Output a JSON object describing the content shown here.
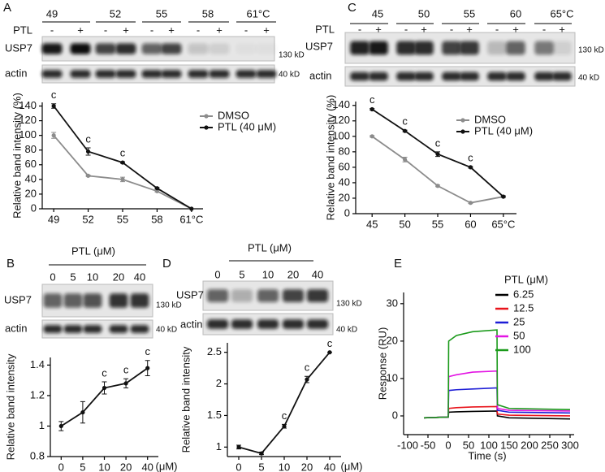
{
  "blots": [
    {
      "letter": "A",
      "header": [
        "49",
        "52",
        "55",
        "58",
        "61°C"
      ],
      "treatment": "PTL",
      "lanes": [
        "-",
        "+",
        "-",
        "+",
        "-",
        "+",
        "-",
        "+",
        "-",
        "+"
      ],
      "rows": [
        {
          "name": "USP7",
          "marker": "130 kD"
        },
        {
          "name": "actin",
          "marker": "40 kD"
        }
      ]
    },
    {
      "letter": "C",
      "header": [
        "45",
        "50",
        "55",
        "60",
        "65°C"
      ],
      "treatment": "PTL",
      "lanes": [
        "-",
        "+",
        "-",
        "+",
        "-",
        "+",
        "-",
        "+",
        "-",
        "+"
      ],
      "rows": [
        {
          "name": "USP7",
          "marker": "130 kD"
        },
        {
          "name": "actin",
          "marker": "40 kD"
        }
      ]
    },
    {
      "letter": "B",
      "header_title": "PTL (μM)",
      "header": [
        "0",
        "5",
        "10",
        "20",
        "40"
      ],
      "rows": [
        {
          "name": "USP7",
          "marker": "130 kD"
        },
        {
          "name": "actin",
          "marker": "40 kD"
        }
      ]
    },
    {
      "letter": "D",
      "header_title": "PTL (μM)",
      "header": [
        "0",
        "5",
        "10",
        "20",
        "40"
      ],
      "rows": [
        {
          "name": "USP7",
          "marker": "130 kD"
        },
        {
          "name": "actin",
          "marker": "40 kD"
        }
      ]
    },
    {
      "letter": "E"
    }
  ],
  "chart_data": [
    {
      "type": "line",
      "ylabel": "Relative band intensity (%)",
      "markers": true,
      "x": [
        49,
        52,
        55,
        58,
        61
      ],
      "xlim": [
        48,
        62
      ],
      "xticks": [
        49,
        52,
        55,
        58,
        {
          "value": 61,
          "label": "61°C"
        }
      ],
      "ylim": [
        0,
        145
      ],
      "yticks": [
        0,
        20,
        40,
        60,
        80,
        100,
        120,
        140
      ],
      "series": [
        {
          "name": "DMSO",
          "color": "#8c8c8c",
          "values": [
            100,
            45,
            40,
            24,
            0
          ],
          "errors": [
            4,
            1,
            3,
            1,
            0
          ]
        },
        {
          "name": "PTL (40 μM)",
          "color": "#111111",
          "values": [
            140,
            78,
            63,
            28,
            0
          ],
          "errors": [
            3,
            5,
            1,
            1,
            0
          ],
          "labels": [
            "c",
            "c",
            "c",
            null,
            null
          ]
        }
      ]
    },
    {
      "type": "line",
      "ylabel": "Relative band intensity (%)",
      "markers": true,
      "x": [
        45,
        50,
        55,
        60,
        65
      ],
      "xlim": [
        42.5,
        67
      ],
      "xticks": [
        45,
        50,
        55,
        60,
        {
          "value": 65,
          "label": "65°C"
        }
      ],
      "ylim": [
        0,
        145
      ],
      "yticks": [
        0,
        20,
        40,
        60,
        80,
        100,
        120,
        140
      ],
      "series": [
        {
          "name": "DMSO",
          "color": "#8c8c8c",
          "values": [
            100,
            70,
            36,
            14,
            22
          ],
          "errors": [
            1,
            3,
            1,
            1,
            1
          ]
        },
        {
          "name": "PTL (40 μM)",
          "color": "#111111",
          "values": [
            135,
            107,
            77,
            60,
            22
          ],
          "errors": [
            1,
            1,
            3,
            1,
            1
          ],
          "labels": [
            "c",
            "c",
            "c",
            "c",
            null
          ]
        }
      ]
    },
    {
      "type": "line",
      "ylabel": "Relative band intensity",
      "xlabel": "(μM)",
      "markers": true,
      "categories": [
        "0",
        "5",
        "10",
        "20",
        "40"
      ],
      "ylim": [
        0.8,
        1.45
      ],
      "yticks": [
        0.8,
        1.0,
        1.2,
        1.4
      ],
      "series": [
        {
          "color": "#111111",
          "values": [
            1.0,
            1.09,
            1.25,
            1.28,
            1.38
          ],
          "errors": [
            0.03,
            0.07,
            0.04,
            0.03,
            0.05
          ],
          "labels": [
            null,
            null,
            "c",
            "c",
            "c"
          ]
        }
      ]
    },
    {
      "type": "line",
      "ylabel": "Relative band intensity",
      "xlabel": "(μM)",
      "markers": true,
      "categories": [
        "0",
        "5",
        "10",
        "20",
        "40"
      ],
      "ylim": [
        0.85,
        2.65
      ],
      "yticks": [
        1.0,
        1.5,
        2.0,
        2.5
      ],
      "series": [
        {
          "color": "#111111",
          "values": [
            1.0,
            0.9,
            1.33,
            2.07,
            2.5
          ],
          "errors": [
            0.03,
            0.02,
            0.03,
            0.05,
            0
          ],
          "labels": [
            null,
            null,
            "c",
            "c",
            "c"
          ]
        }
      ]
    },
    {
      "type": "line",
      "ylabel": "Response (RU)",
      "xlabel": "Time (s)",
      "markers": false,
      "legend_title": "PTL (μM)",
      "x": [
        -60,
        0,
        1,
        20,
        60,
        120,
        121,
        150,
        300
      ],
      "xlim": [
        -110,
        310
      ],
      "xticks": [
        -100,
        -50,
        0,
        50,
        100,
        150,
        200,
        250,
        300
      ],
      "ylim": [
        -5,
        33
      ],
      "yticks": [
        0,
        10,
        20,
        30
      ],
      "series": [
        {
          "name": "6.25",
          "color": "#000000",
          "values": [
            -0.5,
            -0.3,
            1,
            1.1,
            1.2,
            1.3,
            0,
            -0.5,
            -0.8
          ]
        },
        {
          "name": "12.5",
          "color": "#e8141b",
          "values": [
            -0.5,
            -0.3,
            2,
            2.2,
            2.4,
            2.5,
            0.5,
            0.2,
            0
          ]
        },
        {
          "name": "25",
          "color": "#1d1dd6",
          "values": [
            -0.5,
            -0.3,
            6.8,
            7,
            7.2,
            7.5,
            1.5,
            1,
            0.8
          ]
        },
        {
          "name": "50",
          "color": "#e314e3",
          "values": [
            -0.5,
            -0.3,
            10.5,
            11,
            11.7,
            12,
            2,
            1.5,
            1.3
          ]
        },
        {
          "name": "100",
          "color": "#1a9a1a",
          "values": [
            -0.5,
            -0.3,
            20,
            21.5,
            22.5,
            23,
            3,
            2,
            1.7
          ]
        }
      ]
    }
  ]
}
